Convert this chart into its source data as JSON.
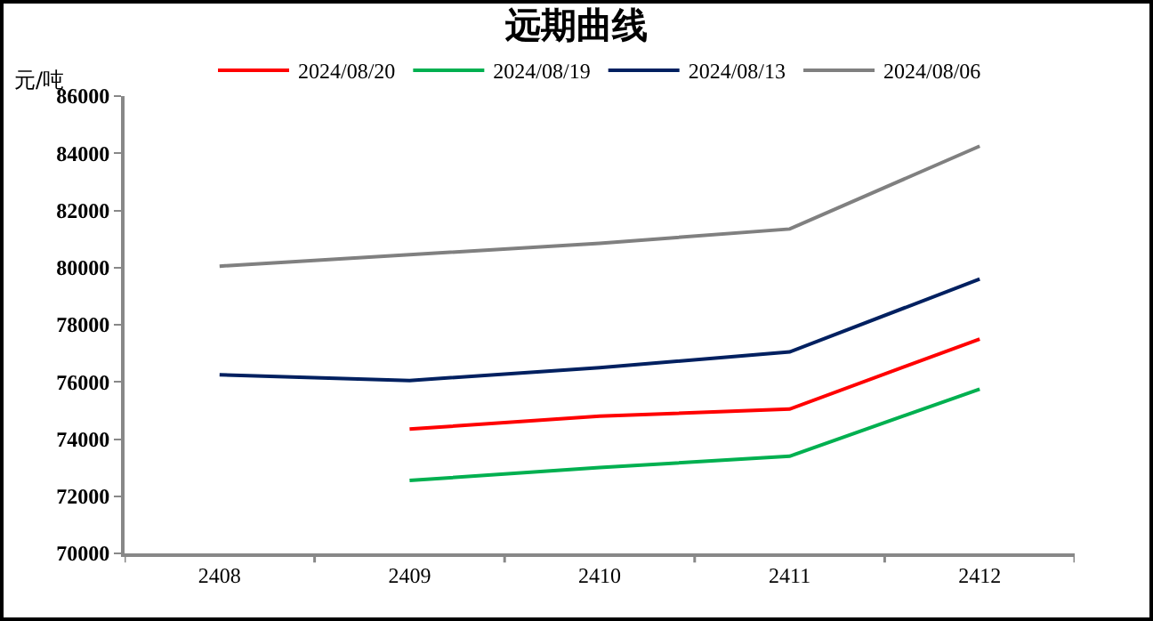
{
  "chart_data": {
    "type": "line",
    "title": "远期曲线",
    "ylabel": "元/吨",
    "categories": [
      "2408",
      "2409",
      "2410",
      "2411",
      "2412"
    ],
    "series": [
      {
        "name": "2024/08/20",
        "color": "#ff0000",
        "values": [
          null,
          74350,
          74800,
          75050,
          77500
        ]
      },
      {
        "name": "2024/08/19",
        "color": "#00b050",
        "values": [
          null,
          72550,
          73000,
          73400,
          75750
        ]
      },
      {
        "name": "2024/08/13",
        "color": "#002060",
        "values": [
          76250,
          76050,
          76500,
          77050,
          79600
        ]
      },
      {
        "name": "2024/08/06",
        "color": "#808080",
        "values": [
          80050,
          80450,
          80850,
          81350,
          84250
        ]
      }
    ],
    "ylim": [
      70000,
      86000
    ],
    "yticks": [
      70000,
      72000,
      74000,
      76000,
      78000,
      80000,
      82000,
      84000,
      86000
    ],
    "grid": false,
    "legend": "top",
    "marker": "none",
    "line_style": "solid"
  }
}
